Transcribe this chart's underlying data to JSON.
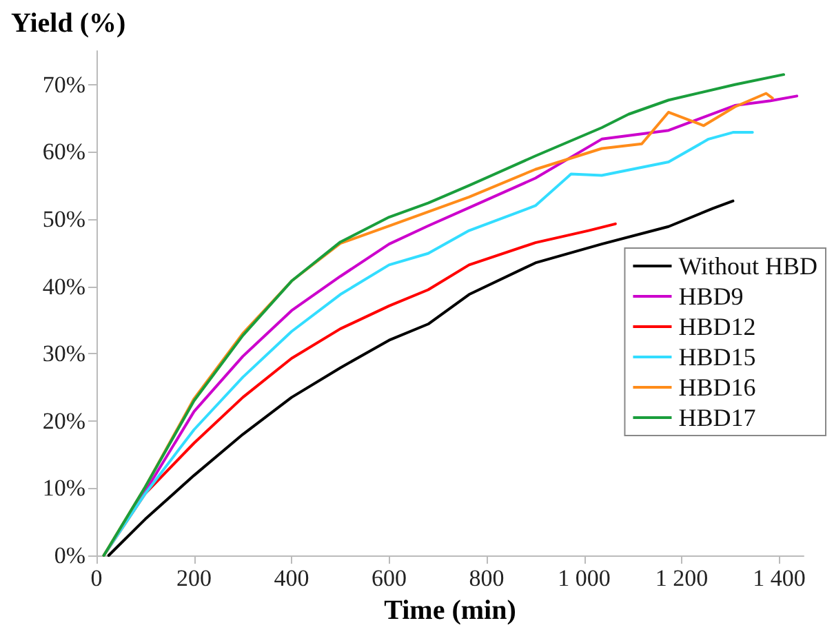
{
  "chart_data": {
    "type": "line",
    "xlabel": "Time (min)",
    "ylabel": "Yield (%)",
    "xlim": [
      0,
      1450
    ],
    "ylim": [
      0,
      75
    ],
    "xticks": [
      0,
      200,
      400,
      600,
      800,
      {
        "value": 1000,
        "label": "1 000"
      },
      {
        "value": 1200,
        "label": "1 200"
      },
      {
        "value": 1400,
        "label": "1 400"
      }
    ],
    "yticks": [
      {
        "value": 0,
        "label": "0%"
      },
      {
        "value": 10,
        "label": "10%"
      },
      {
        "value": 20,
        "label": "20%"
      },
      {
        "value": 30,
        "label": "30%"
      },
      {
        "value": 40,
        "label": "40%"
      },
      {
        "value": 50,
        "label": "50%"
      },
      {
        "value": 60,
        "label": "60%"
      },
      {
        "value": 70,
        "label": "70%"
      }
    ],
    "grid": false,
    "legend": "right",
    "marker": "none",
    "line_style": "solid",
    "series": [
      {
        "name": "Without HBD",
        "color": "#000000",
        "x": [
          25,
          100,
          200,
          300,
          400,
          500,
          600,
          680,
          764,
          900,
          1036,
          1173,
          1264,
          1305
        ],
        "values": [
          0,
          5.4,
          11.9,
          18,
          23.5,
          27.9,
          32,
          34.4,
          38.8,
          43.5,
          46.3,
          48.9,
          51.6,
          52.7
        ]
      },
      {
        "name": "HBD9",
        "color": "#cc00cc",
        "x": [
          15,
          100,
          200,
          300,
          400,
          500,
          600,
          680,
          764,
          900,
          1036,
          1173,
          1309,
          1382,
          1436
        ],
        "values": [
          0,
          9.5,
          21.4,
          29.6,
          36.4,
          41.5,
          46.3,
          49,
          51.7,
          56.1,
          61.9,
          63.2,
          66.9,
          67.6,
          68.3
        ]
      },
      {
        "name": "HBD12",
        "color": "#ff0000",
        "x": [
          15,
          100,
          200,
          300,
          400,
          500,
          600,
          680,
          764,
          900,
          1009,
          1064
        ],
        "values": [
          0,
          9.2,
          16.7,
          23.5,
          29.3,
          33.7,
          37.1,
          39.5,
          43.2,
          46.5,
          48.3,
          49.3
        ]
      },
      {
        "name": "HBD15",
        "color": "#33ddff",
        "x": [
          15,
          100,
          200,
          300,
          400,
          500,
          600,
          680,
          764,
          900,
          973,
          1036,
          1173,
          1255,
          1305,
          1345
        ],
        "values": [
          0,
          9.2,
          18.7,
          26.5,
          33.3,
          38.8,
          43.2,
          44.9,
          48.3,
          52,
          56.7,
          56.5,
          58.5,
          61.9,
          62.9,
          62.9
        ]
      },
      {
        "name": "HBD16",
        "color": "#ff8c1a",
        "x": [
          15,
          100,
          200,
          300,
          400,
          500,
          600,
          764,
          900,
          1036,
          1118,
          1173,
          1245,
          1309,
          1373,
          1386
        ],
        "values": [
          0,
          10.2,
          23.3,
          33,
          40.8,
          46.4,
          49,
          53.3,
          57.4,
          60.5,
          61.2,
          65.9,
          63.9,
          66.7,
          68.7,
          68
        ]
      },
      {
        "name": "HBD17",
        "color": "#1a9e3c",
        "x": [
          15,
          100,
          200,
          300,
          400,
          500,
          600,
          680,
          764,
          900,
          1036,
          1091,
          1173,
          1309,
          1409
        ],
        "values": [
          0,
          10.2,
          23,
          32.7,
          40.8,
          46.6,
          50.3,
          52.4,
          55,
          59.4,
          63.6,
          65.6,
          67.7,
          70,
          71.5
        ]
      }
    ]
  }
}
